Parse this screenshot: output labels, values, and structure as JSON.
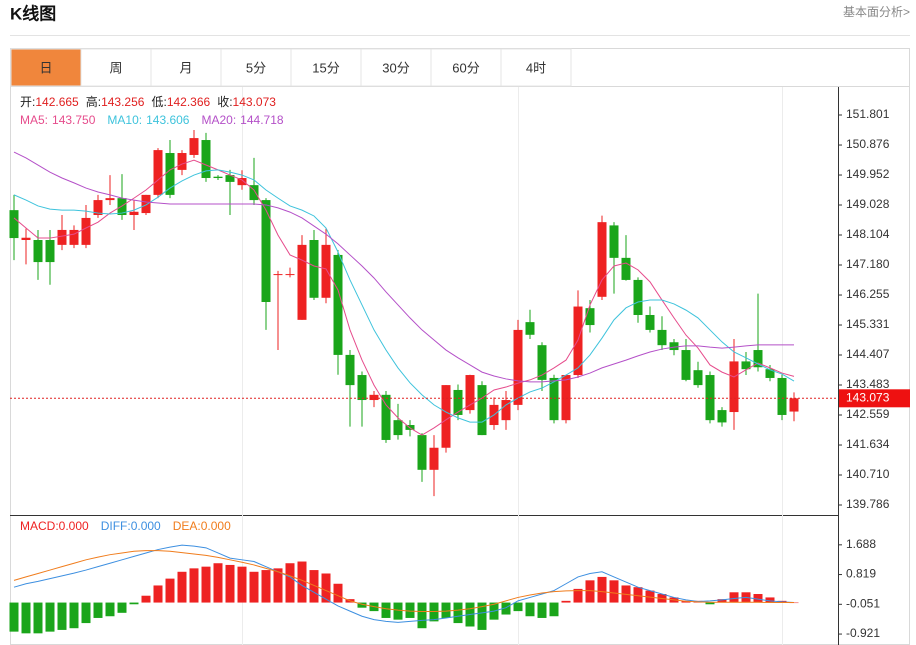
{
  "header": {
    "title": "K线图",
    "link": "基本面分析>"
  },
  "tabs": [
    "日",
    "周",
    "月",
    "5分",
    "15分",
    "30分",
    "60分",
    "4时"
  ],
  "active_tab": 0,
  "chart_data": [
    {
      "type": "candlestick",
      "info": [
        {
          "label": "开:",
          "value": "142.665"
        },
        {
          "label": "高:",
          "value": "143.256"
        },
        {
          "label": "低:",
          "value": "142.366"
        },
        {
          "label": "收:",
          "value": "143.073"
        }
      ],
      "up_color": "#ee2222",
      "down_color": "#1aa51a",
      "ylim": [
        139.478,
        152.633
      ],
      "yticks": [
        151.801,
        150.876,
        149.952,
        149.028,
        148.104,
        {
          "value": 147.18,
          "label": "147.180"
        },
        146.255,
        145.331,
        144.407,
        143.483,
        142.559,
        141.634,
        {
          "value": 140.71,
          "label": "140.710"
        },
        139.786
      ],
      "open": [
        148.87,
        147.95,
        147.95,
        147.95,
        147.8,
        147.8,
        147.8,
        148.72,
        149.18,
        149.24,
        148.72,
        148.78,
        149.34,
        150.63,
        150.11,
        150.57,
        151.03,
        149.9,
        149.95,
        149.64,
        149.64,
        149.18,
        146.87,
        146.87,
        145.49,
        147.95,
        146.17,
        147.49,
        144.41,
        143.79,
        143.02,
        143.18,
        142.4,
        142.25,
        141.94,
        140.87,
        141.55,
        143.33,
        142.71,
        143.48,
        142.25,
        142.4,
        142.87,
        145.42,
        144.71,
        143.7,
        142.4,
        143.79,
        145.85,
        146.2,
        148.4,
        147.4,
        146.72,
        145.64,
        145.18,
        144.8,
        144.56,
        143.94,
        143.79,
        142.71,
        142.65,
        144.21,
        144.56,
        143.97,
        143.7,
        142.665
      ],
      "high": [
        149.34,
        148.3,
        148.26,
        148.26,
        148.72,
        148.4,
        149.03,
        149.34,
        149.95,
        149.98,
        149.18,
        149.34,
        150.78,
        151.03,
        150.72,
        151.34,
        151.25,
        149.95,
        150.11,
        150.1,
        150.48,
        149.24,
        147.0,
        147.1,
        148.1,
        148.26,
        148.3,
        147.64,
        144.56,
        143.9,
        143.3,
        143.3,
        142.9,
        142.4,
        142.0,
        141.94,
        143.48,
        143.5,
        143.8,
        143.6,
        143.1,
        143.3,
        145.49,
        145.8,
        144.8,
        143.8,
        143.8,
        146.4,
        146.1,
        148.7,
        148.5,
        148.1,
        146.8,
        145.9,
        145.6,
        144.9,
        144.9,
        144.2,
        143.9,
        142.8,
        144.9,
        144.5,
        146.3,
        144.1,
        143.8,
        143.256
      ],
      "low": [
        147.33,
        147.2,
        146.72,
        146.57,
        147.64,
        147.7,
        147.7,
        148.63,
        149.03,
        148.57,
        148.26,
        148.72,
        149.24,
        149.24,
        149.95,
        150.48,
        149.74,
        149.8,
        148.72,
        149.5,
        149.03,
        145.18,
        144.56,
        146.8,
        145.49,
        146.1,
        146.0,
        143.8,
        142.2,
        142.2,
        142.8,
        141.7,
        141.8,
        141.9,
        140.5,
        140.06,
        141.4,
        142.4,
        142.6,
        141.94,
        142.1,
        142.1,
        142.71,
        144.9,
        143.3,
        142.3,
        142.3,
        143.7,
        145.1,
        146.1,
        146.3,
        146.7,
        145.4,
        145.1,
        144.56,
        144.4,
        143.6,
        143.4,
        142.3,
        142.2,
        142.1,
        143.79,
        143.9,
        143.6,
        142.4,
        142.366
      ],
      "close": [
        148.01,
        148.02,
        147.27,
        147.27,
        148.26,
        148.26,
        148.63,
        149.18,
        149.24,
        148.72,
        148.82,
        149.34,
        150.72,
        149.34,
        150.63,
        151.09,
        149.86,
        149.86,
        149.74,
        149.86,
        149.18,
        146.04,
        146.9,
        146.9,
        147.8,
        146.17,
        147.8,
        144.41,
        143.48,
        143.02,
        143.18,
        141.79,
        141.94,
        142.1,
        140.87,
        141.55,
        143.48,
        142.56,
        143.79,
        141.94,
        142.87,
        143.02,
        145.18,
        145.03,
        143.64,
        142.4,
        143.79,
        145.9,
        145.33,
        148.5,
        147.4,
        146.72,
        145.64,
        145.18,
        144.71,
        144.56,
        143.64,
        143.48,
        142.4,
        142.33,
        144.21,
        143.97,
        144.03,
        143.7,
        142.56,
        143.073
      ],
      "series": [
        {
          "name": "MA5:",
          "color": "#e64c8c",
          "last_value": "143.750",
          "values": [
            148.63,
            148.32,
            148.01,
            148.01,
            148.07,
            148.13,
            148.32,
            148.5,
            148.78,
            149.0,
            149.24,
            149.49,
            149.8,
            150.11,
            150.29,
            150.41,
            150.26,
            150.11,
            149.95,
            149.8,
            149.49,
            148.87,
            148.1,
            147.49,
            147.33,
            147.15,
            147.06,
            146.41,
            145.18,
            144.25,
            143.48,
            142.87,
            142.47,
            142.16,
            141.94,
            142.16,
            142.41,
            142.65,
            142.87,
            143.08,
            143.33,
            143.42,
            143.54,
            143.64,
            143.79,
            144.01,
            144.25,
            144.87,
            145.95,
            146.72,
            147.15,
            147.24,
            147.03,
            146.66,
            146.1,
            145.55,
            145.02,
            144.62,
            144.1,
            143.88,
            143.73,
            143.95,
            144.16,
            144.01,
            143.85,
            143.75
          ]
        },
        {
          "name": "MA10:",
          "color": "#3ec3dc",
          "last_value": "143.606",
          "values": [
            149.34,
            149.18,
            149.0,
            148.9,
            148.87,
            148.87,
            148.84,
            148.78,
            148.75,
            148.78,
            148.87,
            149.03,
            149.27,
            149.55,
            149.77,
            149.95,
            150.08,
            150.11,
            150.04,
            149.95,
            149.8,
            149.49,
            149.24,
            149.0,
            148.87,
            148.69,
            148.32,
            147.58,
            146.72,
            145.95,
            145.18,
            144.56,
            144.01,
            143.55,
            143.18,
            142.87,
            142.65,
            142.47,
            142.34,
            142.34,
            142.56,
            142.87,
            143.08,
            143.27,
            143.39,
            143.58,
            143.79,
            144.01,
            144.41,
            144.93,
            145.49,
            145.86,
            146.04,
            146.1,
            146.1,
            145.98,
            145.79,
            145.55,
            145.18,
            144.81,
            144.5,
            144.32,
            144.13,
            143.95,
            143.82,
            143.606
          ]
        },
        {
          "name": "MA20:",
          "color": "#b450c8",
          "last_value": "144.718",
          "values": [
            150.66,
            150.48,
            150.26,
            150.04,
            149.86,
            149.71,
            149.55,
            149.43,
            149.34,
            149.24,
            149.18,
            149.12,
            149.09,
            149.06,
            149.06,
            149.06,
            149.06,
            149.06,
            149.06,
            149.06,
            149.06,
            149.03,
            148.94,
            148.81,
            148.63,
            148.38,
            148.13,
            147.83,
            147.49,
            147.15,
            146.78,
            146.35,
            145.95,
            145.55,
            145.18,
            144.87,
            144.56,
            144.32,
            144.1,
            143.88,
            143.76,
            143.67,
            143.61,
            143.58,
            143.58,
            143.61,
            143.64,
            143.73,
            143.85,
            144.01,
            144.13,
            144.25,
            144.38,
            144.5,
            144.59,
            144.65,
            144.69,
            144.69,
            144.65,
            144.62,
            144.65,
            144.69,
            144.72,
            144.72,
            144.72,
            144.718
          ]
        }
      ],
      "last_price": 143.073
    },
    {
      "type": "macd",
      "up_color": "#ee2222",
      "down_color": "#1aa51a",
      "ylim": [
        -1.241,
        2.502
      ],
      "yticks": [
        1.688,
        0.819,
        -0.051,
        -0.921
      ],
      "series": [
        {
          "name": "MACD:",
          "color": "#ee2222",
          "last_value": "0.000",
          "values": [
            -0.85,
            -0.9,
            -0.9,
            -0.85,
            -0.8,
            -0.75,
            -0.6,
            -0.45,
            -0.4,
            -0.3,
            -0.05,
            0.2,
            0.5,
            0.7,
            0.9,
            1.0,
            1.05,
            1.15,
            1.1,
            1.05,
            0.9,
            0.95,
            1.0,
            1.15,
            1.2,
            0.95,
            0.85,
            0.55,
            0.1,
            -0.15,
            -0.25,
            -0.45,
            -0.5,
            -0.45,
            -0.75,
            -0.55,
            -0.45,
            -0.6,
            -0.7,
            -0.8,
            -0.5,
            -0.35,
            -0.25,
            -0.4,
            -0.45,
            -0.4,
            0.05,
            0.4,
            0.65,
            0.75,
            0.65,
            0.5,
            0.45,
            0.35,
            0.25,
            0.15,
            0.05,
            0.05,
            -0.05,
            0.1,
            0.3,
            0.3,
            0.25,
            0.15,
            0.05,
            0.0
          ]
        },
        {
          "name": "DIFF:",
          "color": "#3d8fe0",
          "last_value": "0.000",
          "values": [
            0.45,
            0.55,
            0.62,
            0.7,
            0.78,
            0.86,
            0.95,
            1.05,
            1.15,
            1.25,
            1.35,
            1.45,
            1.55,
            1.62,
            1.68,
            1.65,
            1.6,
            1.45,
            1.3,
            1.25,
            1.2,
            1.05,
            0.9,
            0.75,
            0.5,
            0.3,
            0.1,
            -0.1,
            -0.25,
            -0.4,
            -0.5,
            -0.55,
            -0.58,
            -0.55,
            -0.52,
            -0.5,
            -0.45,
            -0.4,
            -0.35,
            -0.3,
            -0.25,
            -0.15,
            0.05,
            0.15,
            0.25,
            0.35,
            0.55,
            0.75,
            0.85,
            0.9,
            0.75,
            0.6,
            0.45,
            0.35,
            0.25,
            0.15,
            0.08,
            0.03,
            0.05,
            0.08,
            0.12,
            0.15,
            0.1,
            0.05,
            0.02,
            0.0
          ]
        },
        {
          "name": "DEA:",
          "color": "#f07c1c",
          "last_value": "0.000",
          "values": [
            0.65,
            0.75,
            0.85,
            0.95,
            1.05,
            1.15,
            1.25,
            1.33,
            1.4,
            1.45,
            1.5,
            1.52,
            1.52,
            1.5,
            1.46,
            1.42,
            1.38,
            1.32,
            1.25,
            1.18,
            1.1,
            1.0,
            0.9,
            0.78,
            0.65,
            0.5,
            0.35,
            0.2,
            0.05,
            -0.05,
            -0.12,
            -0.18,
            -0.22,
            -0.25,
            -0.26,
            -0.26,
            -0.25,
            -0.22,
            -0.18,
            -0.12,
            -0.05,
            0.05,
            0.15,
            0.22,
            0.28,
            0.32,
            0.34,
            0.35,
            0.35,
            0.32,
            0.28,
            0.24,
            0.2,
            0.16,
            0.12,
            0.08,
            0.04,
            0.02,
            0.01,
            0.01,
            0.01,
            0.01,
            0.01,
            0.0,
            0.0,
            0.0
          ]
        }
      ]
    }
  ]
}
